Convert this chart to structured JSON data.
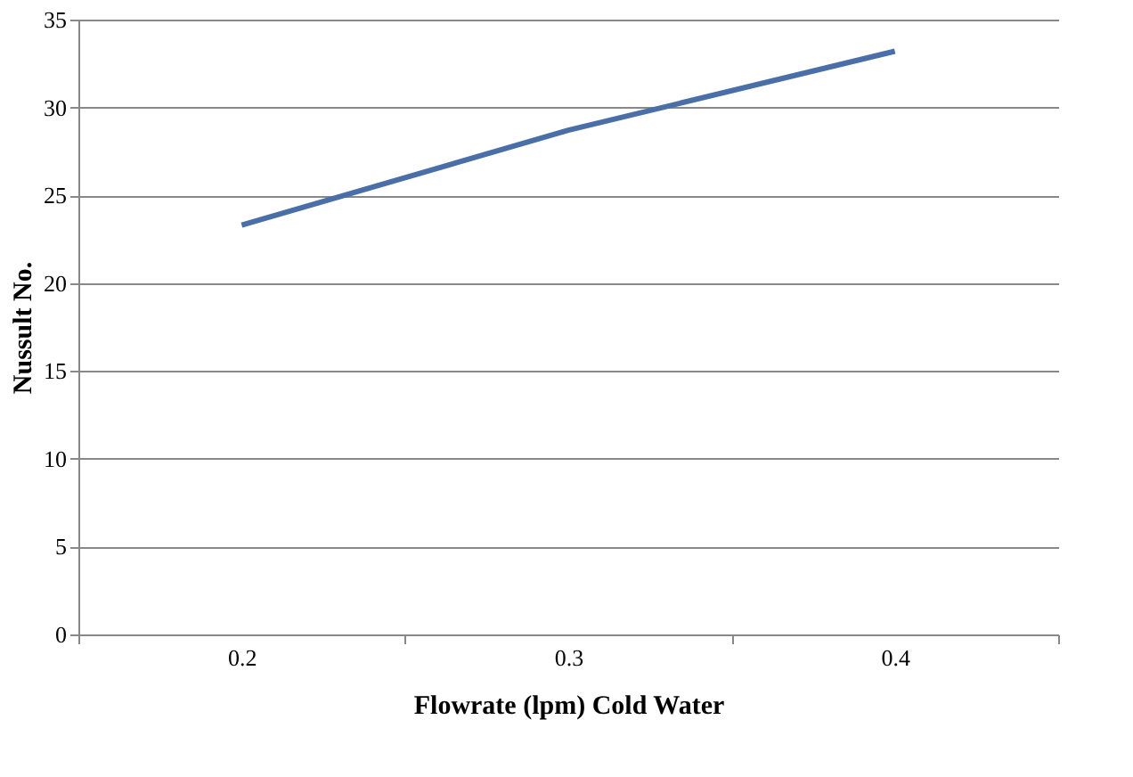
{
  "chart_data": {
    "type": "line",
    "xlabel": "Flowrate (lpm) Cold Water",
    "ylabel": "Nussult No.",
    "categories": [
      "0.2",
      "0.3",
      "0.4"
    ],
    "series": [
      {
        "color": "#4a6fa8",
        "values": [
          23.3,
          28.7,
          33.2
        ]
      }
    ],
    "ylim": [
      0,
      35
    ],
    "yticks": [
      0,
      5,
      10,
      15,
      20,
      25,
      30,
      35
    ],
    "grid": "y",
    "marker": "none",
    "line_style": "solid"
  }
}
